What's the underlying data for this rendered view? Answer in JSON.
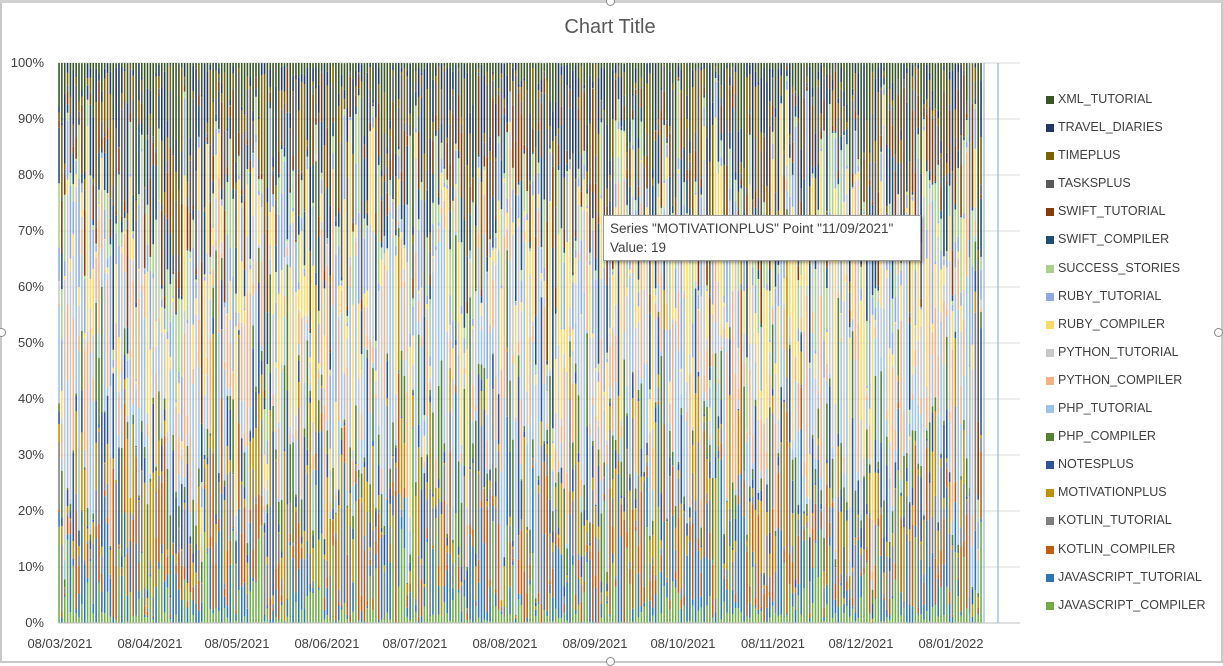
{
  "chart_data": {
    "type": "bar",
    "stacking": "percent",
    "title": "Chart Title",
    "xlabel": "",
    "ylabel": "",
    "ylim": [
      0,
      100
    ],
    "y_ticks": [
      "0%",
      "10%",
      "20%",
      "30%",
      "40%",
      "50%",
      "60%",
      "70%",
      "80%",
      "90%",
      "100%"
    ],
    "x_ticks": [
      "08/03/2021",
      "08/04/2021",
      "08/05/2021",
      "08/06/2021",
      "08/07/2021",
      "08/08/2021",
      "08/09/2021",
      "08/10/2021",
      "08/11/2021",
      "08/12/2021",
      "08/01/2022"
    ],
    "x_range": [
      "08/03/2021",
      "08/02/2022"
    ],
    "grid": true,
    "legend_position": "right",
    "series": [
      {
        "name": "XML_TUTORIAL",
        "color": "#375623"
      },
      {
        "name": "TRAVEL_DIARIES",
        "color": "#1f3864"
      },
      {
        "name": "TIMEPLUS",
        "color": "#7f6000"
      },
      {
        "name": "TASKSPLUS",
        "color": "#595959"
      },
      {
        "name": "SWIFT_TUTORIAL",
        "color": "#843c0c"
      },
      {
        "name": "SWIFT_COMPILER",
        "color": "#1f4e79"
      },
      {
        "name": "SUCCESS_STORIES",
        "color": "#a9d18e"
      },
      {
        "name": "RUBY_TUTORIAL",
        "color": "#8faadc"
      },
      {
        "name": "RUBY_COMPILER",
        "color": "#ffd966"
      },
      {
        "name": "PYTHON_TUTORIAL",
        "color": "#c9c9c9"
      },
      {
        "name": "PYTHON_COMPILER",
        "color": "#f4b183"
      },
      {
        "name": "PHP_TUTORIAL",
        "color": "#9dc3e6"
      },
      {
        "name": "PHP_COMPILER",
        "color": "#548235"
      },
      {
        "name": "NOTESPLUS",
        "color": "#2f5597"
      },
      {
        "name": "MOTIVATIONPLUS",
        "color": "#bf9000"
      },
      {
        "name": "KOTLIN_TUTORIAL",
        "color": "#7f7f7f"
      },
      {
        "name": "KOTLIN_COMPILER",
        "color": "#c55a11"
      },
      {
        "name": "JAVASCRIPT_TUTORIAL",
        "color": "#2e75b6"
      },
      {
        "name": "JAVASCRIPT_COMPILER",
        "color": "#70ad47"
      }
    ],
    "tooltip": {
      "line1": "Series \"MOTIVATIONPLUS\" Point \"11/09/2021\"",
      "line2": "Value: 19"
    }
  }
}
